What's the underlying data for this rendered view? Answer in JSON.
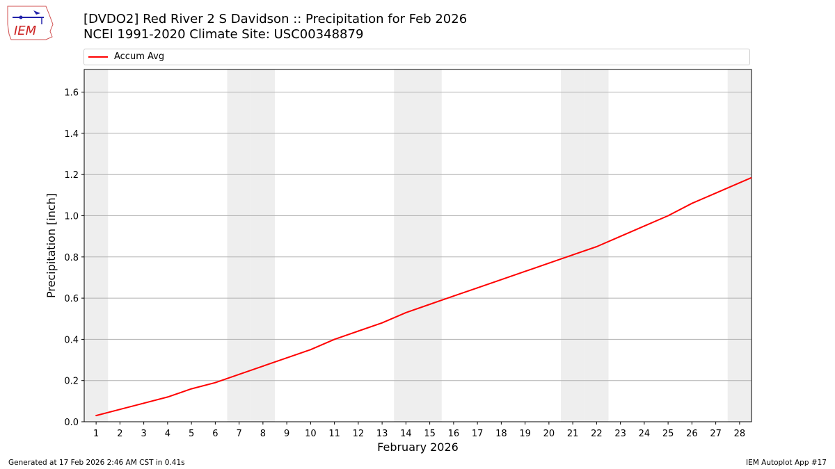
{
  "logo": {
    "text": "IEM"
  },
  "title_line1": "[DVDO2] Red River 2 S Davidson :: Precipitation for Feb 2026",
  "title_line2": "NCEI 1991-2020 Climate Site: USC00348879",
  "footer_left": "Generated at 17 Feb 2026 2:46 AM CST in 0.41s",
  "footer_right": "IEM Autoplot App #17",
  "colors": {
    "series": "#ff0000",
    "weekend": "#eeeeee",
    "grid": "#b0b0b0"
  },
  "chart_data": {
    "type": "line",
    "title": "[DVDO2] Red River 2 S Davidson :: Precipitation for Feb 2026",
    "subtitle": "NCEI 1991-2020 Climate Site: USC00348879",
    "xlabel": "February 2026",
    "ylabel": "Precipitation [inch]",
    "xlim": [
      0.5,
      28.5
    ],
    "ylim": [
      0,
      1.71
    ],
    "yticks": [
      "0.0",
      "0.2",
      "0.4",
      "0.6",
      "0.8",
      "1.0",
      "1.2",
      "1.4",
      "1.6"
    ],
    "x": [
      1,
      2,
      3,
      4,
      5,
      6,
      7,
      8,
      9,
      10,
      11,
      12,
      13,
      14,
      15,
      16,
      17,
      18,
      19,
      20,
      21,
      22,
      23,
      24,
      25,
      26,
      27,
      28
    ],
    "series": [
      {
        "name": "Accum Avg",
        "values": [
          0.03,
          0.06,
          0.09,
          0.12,
          0.16,
          0.19,
          0.23,
          0.27,
          0.31,
          0.35,
          0.4,
          0.44,
          0.48,
          0.53,
          0.57,
          0.61,
          0.65,
          0.69,
          0.73,
          0.77,
          0.81,
          0.85,
          0.9,
          0.95,
          1.0,
          1.06,
          1.11,
          1.16
        ]
      }
    ],
    "weekend_days": [
      1,
      7,
      8,
      14,
      15,
      21,
      22,
      28
    ],
    "grid": "y",
    "legend_position": "top"
  }
}
